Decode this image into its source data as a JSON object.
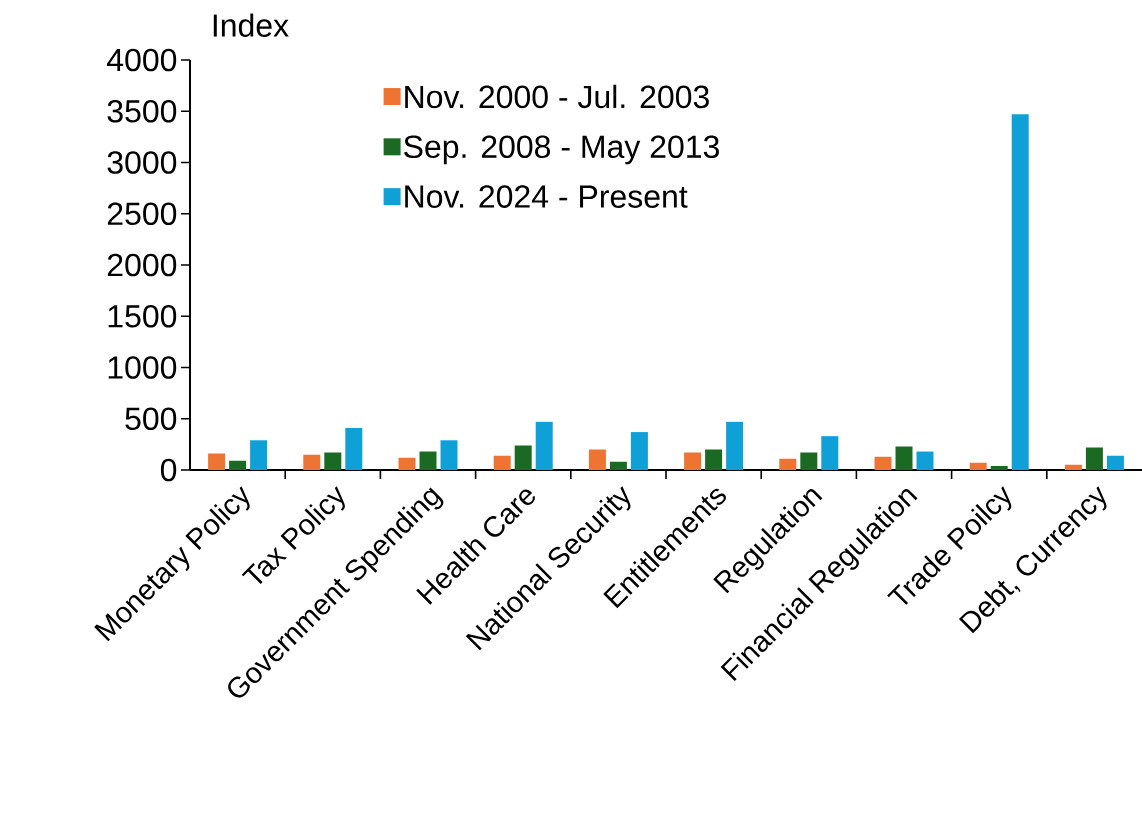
{
  "chart_data": {
    "type": "bar",
    "ylabel": "Index",
    "categories": [
      "Monetary Policy",
      "Tax Policy",
      "Government Spending",
      "Health Care",
      "National Security",
      "Entitlements",
      "Regulation",
      "Financial Regulation",
      "Trade Poilcy",
      "Debt, Currency"
    ],
    "series": [
      {
        "name": "Nov. 2000 - Jul. 2003",
        "color": "#ed7432",
        "values": [
          160,
          150,
          120,
          140,
          200,
          170,
          110,
          130,
          70,
          50
        ]
      },
      {
        "name": "Sep. 2008 - May 2013",
        "color": "#1b6a24",
        "values": [
          90,
          170,
          180,
          240,
          80,
          200,
          170,
          230,
          40,
          220
        ]
      },
      {
        "name": "Nov. 2024 - Present",
        "color": "#10a0d8",
        "values": [
          290,
          410,
          290,
          470,
          370,
          470,
          330,
          180,
          3470,
          140
        ]
      }
    ],
    "ylim": [
      0,
      4000
    ],
    "yticks": [
      0,
      500,
      1000,
      1500,
      2000,
      2500,
      3000,
      3500,
      4000
    ],
    "legend": "top"
  }
}
